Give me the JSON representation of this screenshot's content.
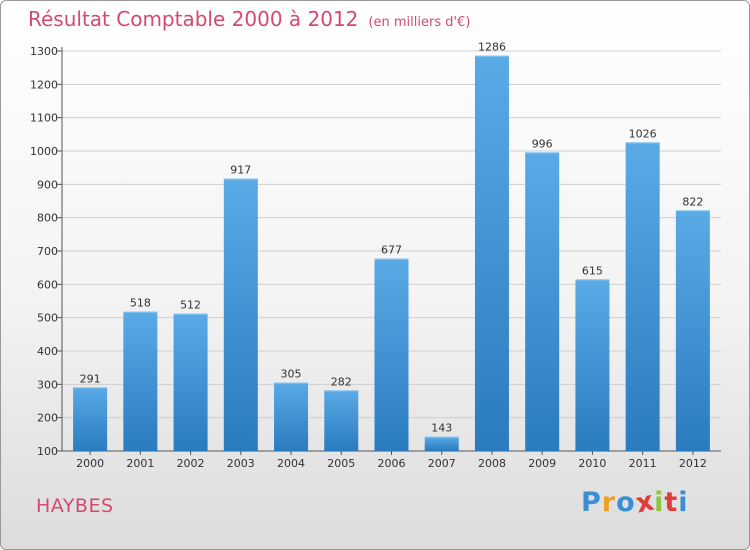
{
  "chart_data": {
    "type": "bar",
    "title": "Résultat Comptable 2000 à 2012",
    "subtitle": "(en milliers d'€)",
    "categories": [
      "2000",
      "2001",
      "2002",
      "2003",
      "2004",
      "2005",
      "2006",
      "2007",
      "2008",
      "2009",
      "2010",
      "2011",
      "2012"
    ],
    "values": [
      291,
      518,
      512,
      917,
      305,
      282,
      677,
      143,
      1286,
      996,
      615,
      1026,
      822
    ],
    "ylim": [
      100,
      1300
    ],
    "yticks": [
      100,
      200,
      300,
      400,
      500,
      600,
      700,
      800,
      900,
      1000,
      1100,
      1200,
      1300
    ],
    "xlabel": "",
    "ylabel": "",
    "grid": true,
    "bar_color_top": "#5aaae6",
    "bar_color_bottom": "#2a7bbf"
  },
  "location": "HAYBES",
  "logo": {
    "letters": [
      "P",
      "r",
      "o",
      "x",
      "i",
      "t",
      "i"
    ],
    "colors": [
      "#3a8fd4",
      "#f0a020",
      "#3a8fd4",
      "#e23b3b",
      "#8dc63f",
      "#e23b3b",
      "#3a8fd4"
    ]
  }
}
